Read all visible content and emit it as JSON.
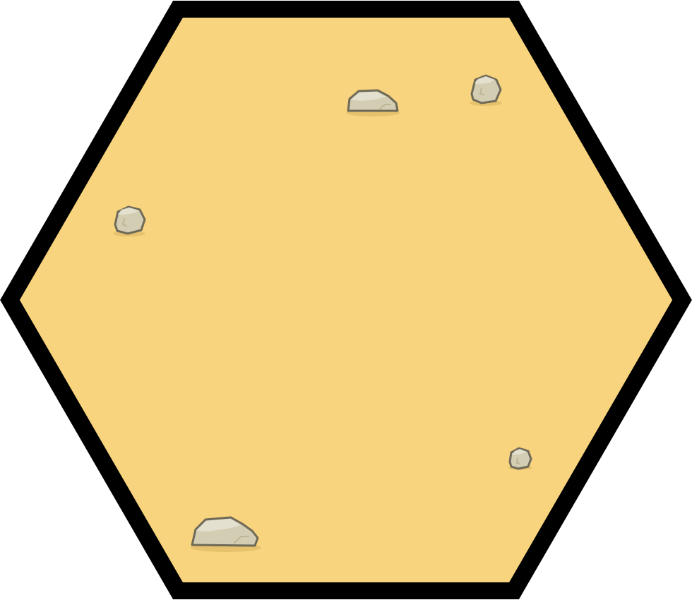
{
  "tile": {
    "terrain": "desert-sand",
    "shape": "hexagon",
    "colors": {
      "fill": "#f8d47e",
      "border": "#000000",
      "rock_light": "#e4e0cf",
      "rock_mid": "#d3cdb3",
      "rock_shade": "#bdb598",
      "rock_outline": "#6f6a58",
      "shadow": "#e3be6a"
    },
    "rocks": [
      {
        "id": "rock-1",
        "kind": "flat-boulder-icon"
      },
      {
        "id": "rock-2",
        "kind": "pebble-icon"
      },
      {
        "id": "rock-3",
        "kind": "pebble-icon"
      },
      {
        "id": "rock-4",
        "kind": "small-pebble-icon"
      },
      {
        "id": "rock-5",
        "kind": "flat-boulder-icon"
      }
    ]
  }
}
